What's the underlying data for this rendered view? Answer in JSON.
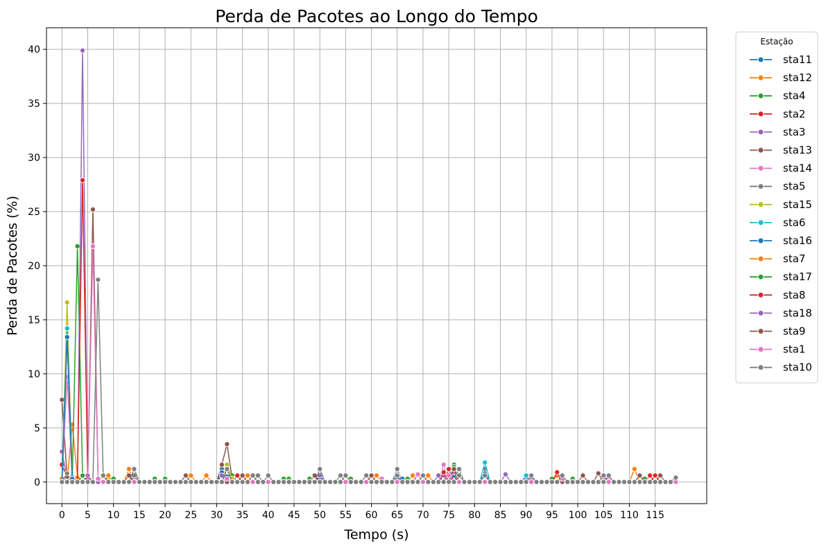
{
  "chart_data": {
    "type": "line",
    "title": "Perda de Pacotes ao Longo do Tempo",
    "xlabel": "Tempo (s)",
    "ylabel": "Perda de Pacotes (%)",
    "xlim": [
      -3,
      125
    ],
    "ylim": [
      -2,
      42
    ],
    "xticks": [
      0,
      5,
      10,
      15,
      20,
      25,
      30,
      35,
      40,
      45,
      50,
      55,
      60,
      65,
      70,
      75,
      80,
      85,
      90,
      95,
      100,
      105,
      110,
      115
    ],
    "yticks": [
      0,
      5,
      10,
      15,
      20,
      25,
      30,
      35,
      40
    ],
    "grid": true,
    "legend_title": "Estação",
    "legend_position": "outside-right",
    "duration": 120,
    "series": [
      {
        "name": "sta11",
        "color": "#1f77b4",
        "points": [
          [
            1,
            13.3
          ],
          [
            2,
            0.3
          ],
          [
            31,
            1.2
          ],
          [
            32,
            0.5
          ],
          [
            50,
            0.3
          ],
          [
            65,
            0.3
          ],
          [
            76,
            0.6
          ],
          [
            82,
            0.6
          ]
        ]
      },
      {
        "name": "sta12",
        "color": "#ff7f0e",
        "points": [
          [
            0,
            0.3
          ],
          [
            2,
            5.3
          ],
          [
            3,
            0.5
          ],
          [
            8,
            0.6
          ],
          [
            13,
            1.2
          ],
          [
            25,
            0.6
          ],
          [
            28,
            0.6
          ],
          [
            36,
            0.6
          ],
          [
            60,
            0.6
          ],
          [
            68,
            0.6
          ],
          [
            71,
            0.6
          ],
          [
            96,
            0.6
          ],
          [
            111,
            1.2
          ]
        ]
      },
      {
        "name": "sta4",
        "color": "#2ca02c",
        "points": [
          [
            3,
            21.8
          ],
          [
            4,
            0.6
          ],
          [
            18,
            0.3
          ],
          [
            20,
            0.3
          ],
          [
            33,
            0.6
          ],
          [
            43,
            0.3
          ],
          [
            44,
            0.3
          ],
          [
            56,
            0.3
          ],
          [
            67,
            0.3
          ],
          [
            76,
            1.6
          ],
          [
            95,
            0.3
          ],
          [
            99,
            0.3
          ],
          [
            112,
            0.6
          ]
        ]
      },
      {
        "name": "sta2",
        "color": "#d62728",
        "points": [
          [
            0,
            1.6
          ],
          [
            1,
            0.4
          ],
          [
            34,
            0.6
          ],
          [
            75,
            1.2
          ],
          [
            96,
            0.9
          ],
          [
            114,
            0.6
          ]
        ]
      },
      {
        "name": "sta3",
        "color": "#9467bd",
        "points": [
          [
            0,
            2.8
          ],
          [
            1,
            0.3
          ],
          [
            4,
            39.9
          ],
          [
            5,
            0.3
          ],
          [
            50,
            0.6
          ],
          [
            74,
            0.6
          ],
          [
            86,
            0.7
          ],
          [
            90,
            0.3
          ]
        ]
      },
      {
        "name": "sta13",
        "color": "#8c564b",
        "points": [
          [
            0,
            7.6
          ],
          [
            1,
            0.5
          ],
          [
            24,
            0.6
          ],
          [
            31,
            1.6
          ],
          [
            32,
            3.5
          ],
          [
            33,
            0.3
          ],
          [
            49,
            0.6
          ],
          [
            65,
            0.6
          ],
          [
            77,
            0.6
          ],
          [
            101,
            0.6
          ],
          [
            104,
            0.8
          ],
          [
            116,
            0.6
          ]
        ]
      },
      {
        "name": "sta14",
        "color": "#e377c2",
        "points": [
          [
            1,
            9.7
          ],
          [
            2,
            0.3
          ],
          [
            14,
            0.3
          ],
          [
            69,
            0.7
          ],
          [
            74,
            1.6
          ],
          [
            76,
            0.9
          ],
          [
            105,
            0.3
          ],
          [
            106,
            0.3
          ]
        ]
      },
      {
        "name": "sta5",
        "color": "#7f7f7f",
        "points": [
          [
            1,
            0.8
          ],
          [
            14,
            0.6
          ],
          [
            38,
            0.6
          ],
          [
            50,
            1.2
          ],
          [
            54,
            0.6
          ],
          [
            65,
            1.2
          ],
          [
            77,
            1.2
          ],
          [
            82,
            1.2
          ],
          [
            91,
            0.6
          ],
          [
            105,
            0.6
          ]
        ]
      },
      {
        "name": "sta15",
        "color": "#bcbd22",
        "points": [
          [
            1,
            16.6
          ],
          [
            2,
            0.5
          ],
          [
            9,
            0.3
          ],
          [
            32,
            1.6
          ],
          [
            33,
            0.3
          ]
        ]
      },
      {
        "name": "sta6",
        "color": "#17becf",
        "points": [
          [
            1,
            14.2
          ],
          [
            2,
            0.3
          ],
          [
            76,
            1.2
          ],
          [
            82,
            1.8
          ],
          [
            90,
            0.6
          ]
        ]
      },
      {
        "name": "sta16",
        "color": "#1f77b4",
        "points": [
          [
            1,
            13.4
          ],
          [
            2,
            0.3
          ],
          [
            31,
            0.9
          ],
          [
            66,
            0.3
          ],
          [
            82,
            0.8
          ]
        ]
      },
      {
        "name": "sta7",
        "color": "#ff7f0e",
        "points": [
          [
            3,
            0.4
          ],
          [
            9,
            0.6
          ],
          [
            35,
            0.6
          ],
          [
            61,
            0.6
          ],
          [
            97,
            0.6
          ]
        ]
      },
      {
        "name": "sta17",
        "color": "#2ca02c",
        "points": [
          [
            4,
            0.6
          ],
          [
            5,
            0.5
          ],
          [
            10,
            0.3
          ],
          [
            32,
            1.2
          ],
          [
            48,
            0.3
          ],
          [
            76,
            1.4
          ],
          [
            113,
            0.3
          ]
        ]
      },
      {
        "name": "sta8",
        "color": "#d62728",
        "points": [
          [
            4,
            27.9
          ],
          [
            5,
            0.3
          ],
          [
            74,
            0.9
          ],
          [
            115,
            0.6
          ]
        ]
      },
      {
        "name": "sta18",
        "color": "#9467bd",
        "points": [
          [
            5,
            0.6
          ],
          [
            31,
            0.6
          ],
          [
            73,
            0.6
          ],
          [
            91,
            0.3
          ]
        ]
      },
      {
        "name": "sta9",
        "color": "#8c564b",
        "points": [
          [
            6,
            25.2
          ],
          [
            7,
            0.3
          ],
          [
            13,
            0.6
          ],
          [
            35,
            0.6
          ],
          [
            60,
            0.6
          ],
          [
            76,
            1.2
          ],
          [
            112,
            0.6
          ]
        ]
      },
      {
        "name": "sta1",
        "color": "#e377c2",
        "points": [
          [
            6,
            21.8
          ],
          [
            7,
            0.3
          ],
          [
            32,
            0.3
          ],
          [
            62,
            0.3
          ],
          [
            75,
            0.6
          ],
          [
            97,
            0.3
          ]
        ]
      },
      {
        "name": "sta10",
        "color": "#7f7f7f",
        "points": [
          [
            7,
            18.7
          ],
          [
            8,
            0.6
          ],
          [
            14,
            1.2
          ],
          [
            32,
            1.2
          ],
          [
            37,
            0.6
          ],
          [
            40,
            0.6
          ],
          [
            55,
            0.6
          ],
          [
            59,
            0.6
          ],
          [
            65,
            0.6
          ],
          [
            70,
            0.6
          ],
          [
            77,
            0.6
          ],
          [
            82,
            0.6
          ],
          [
            91,
            0.6
          ],
          [
            97,
            0.6
          ],
          [
            106,
            0.6
          ],
          [
            119,
            0.4
          ]
        ]
      }
    ]
  }
}
